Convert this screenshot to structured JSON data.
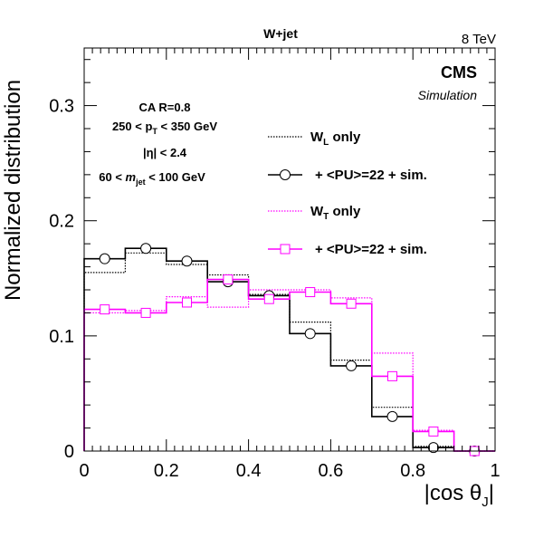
{
  "chart_data": {
    "type": "histogram",
    "title": "W+jet",
    "energy_label": "8 TeV",
    "experiment_label": "CMS",
    "sub_label": "Simulation",
    "xlabel": "|cos θ",
    "xlabel_sub": "J",
    "ylabel": "Normalized distribution",
    "xlim": [
      0,
      1
    ],
    "ylim": [
      0,
      0.35
    ],
    "x_ticks": [
      {
        "value": 0,
        "label": "0"
      },
      {
        "value": 0.2,
        "label": "0.2"
      },
      {
        "value": 0.4,
        "label": "0.4"
      },
      {
        "value": 0.6,
        "label": "0.6"
      },
      {
        "value": 0.8,
        "label": "0.8"
      },
      {
        "value": 1,
        "label": "1"
      }
    ],
    "y_ticks": [
      {
        "value": 0,
        "label": "0"
      },
      {
        "value": 0.1,
        "label": "0.1"
      },
      {
        "value": 0.2,
        "label": "0.2"
      },
      {
        "value": 0.3,
        "label": "0.3"
      }
    ],
    "selection": {
      "line1": "CA R=0.8",
      "line2": "250 < p",
      "line2_sub": "T",
      "line2_rest": " < 350 GeV",
      "line3": "|η| < 2.4",
      "line4": "60 < ",
      "line4_m": "m",
      "line4_sub": "jet",
      "line4_rest": " < 100 GeV"
    },
    "bin_edges": [
      0,
      0.1,
      0.2,
      0.3,
      0.4,
      0.5,
      0.6,
      0.7,
      0.8,
      0.9,
      1.0
    ],
    "bin_centers": [
      0.05,
      0.15,
      0.25,
      0.35,
      0.45,
      0.55,
      0.65,
      0.75,
      0.85,
      0.95
    ],
    "series": [
      {
        "legend": "W",
        "legend_sub": "L",
        "legend_rest": " only",
        "color": "#000000",
        "style": "dotted",
        "values": [
          0.155,
          0.172,
          0.162,
          0.153,
          0.136,
          0.112,
          0.079,
          0.038,
          0.004,
          0.0
        ]
      },
      {
        "legend": "+ <PU>=22 + sim.",
        "color": "#000000",
        "style": "solid",
        "marker": "circle",
        "values": [
          0.167,
          0.176,
          0.165,
          0.147,
          0.135,
          0.102,
          0.074,
          0.03,
          0.003,
          0.0
        ]
      },
      {
        "legend": "W",
        "legend_sub": "T",
        "legend_rest": " only",
        "color": "#ff00ff",
        "style": "dotted",
        "values": [
          0.12,
          0.122,
          0.134,
          0.125,
          0.14,
          0.14,
          0.133,
          0.085,
          0.018,
          0.0
        ]
      },
      {
        "legend": "+ <PU>=22 + sim.",
        "color": "#ff00ff",
        "style": "solid",
        "marker": "square",
        "values": [
          0.123,
          0.12,
          0.129,
          0.149,
          0.132,
          0.138,
          0.128,
          0.065,
          0.017,
          0.0
        ]
      }
    ]
  }
}
